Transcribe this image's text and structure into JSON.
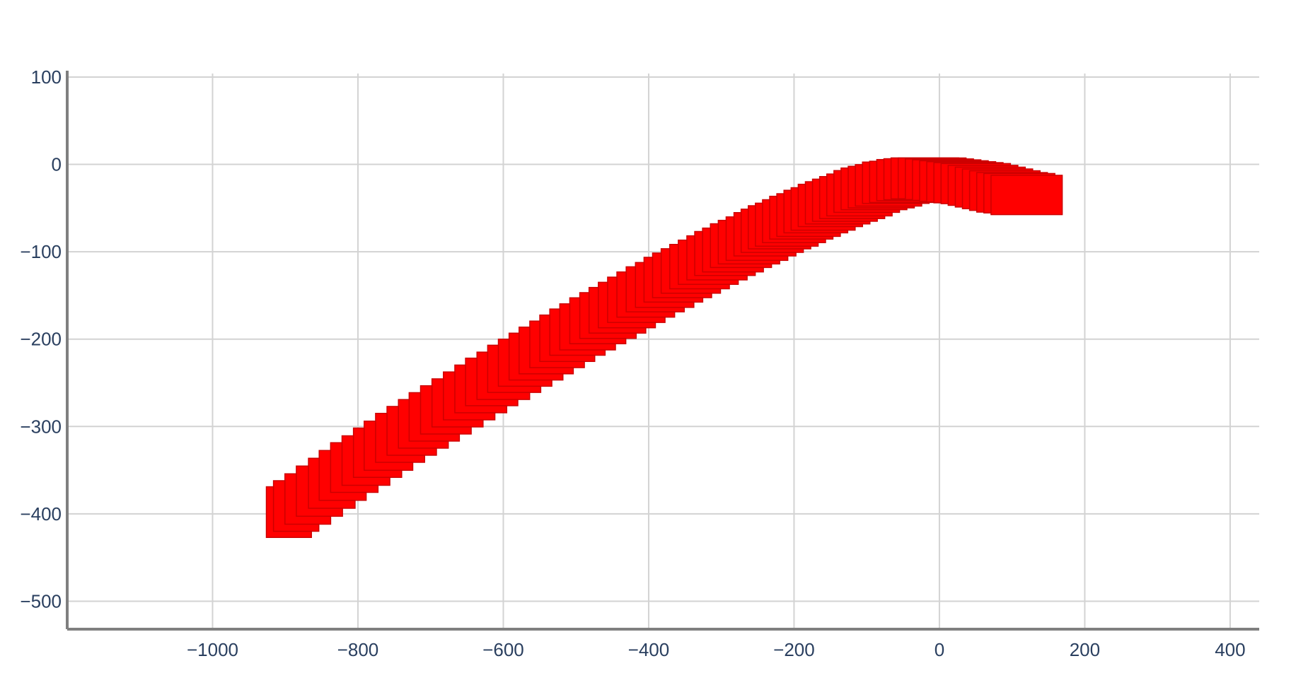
{
  "chart_data": {
    "type": "scatter",
    "title": "",
    "xlabel": "",
    "ylabel": "",
    "xlim": [
      -1200,
      440
    ],
    "ylim": [
      -532,
      104
    ],
    "xticks": [
      -1000,
      -800,
      -600,
      -400,
      -200,
      0,
      200,
      400
    ],
    "yticks": [
      100,
      0,
      -100,
      -200,
      -300,
      -400,
      -500
    ],
    "xtick_labels": [
      "−1000",
      "−800",
      "−600",
      "−400",
      "−200",
      "0",
      "200",
      "400"
    ],
    "ytick_labels": [
      "100",
      "0",
      "−100",
      "−200",
      "−300",
      "−400",
      "−500"
    ],
    "grid": true,
    "legend": false,
    "colors": {
      "marker_fill": "#ff0000",
      "marker_edge": "#cc0000",
      "grid": "#d3d3d3",
      "axis_line": "#7f7f7f",
      "tick_text": "#2a3f5f"
    },
    "series": [
      {
        "marker": "square",
        "marker_size_data_units": [
          {
            "w": 62,
            "h": 58,
            "at_x": -895
          },
          {
            "w": 98,
            "h": 45,
            "at_x": 120
          }
        ],
        "x": [
          -895,
          -885,
          -869,
          -853,
          -836,
          -821,
          -805,
          -789,
          -773,
          -758,
          -742,
          -726,
          -710,
          -695,
          -679,
          -663,
          -647,
          -631,
          -616,
          -600,
          -585,
          -570,
          -555,
          -541,
          -526,
          -512,
          -498,
          -484,
          -470,
          -456,
          -443,
          -430,
          -417,
          -404,
          -391,
          -378,
          -366,
          -354,
          -342,
          -330,
          -318,
          -306,
          -295,
          -284,
          -273,
          -262,
          -251,
          -240,
          -230,
          -220,
          -210,
          -200,
          -190,
          -180,
          -170,
          -160,
          -150,
          -140,
          -130,
          -120,
          -110,
          -100,
          -90,
          -80,
          -70,
          -60,
          -50,
          -40,
          -30,
          -20,
          -10,
          0,
          10,
          20,
          30,
          40,
          50,
          60,
          70,
          80,
          90,
          100,
          110,
          120
        ],
        "y": [
          -398,
          -391,
          -383,
          -374,
          -365,
          -356,
          -347,
          -339,
          -330,
          -322,
          -313,
          -305,
          -297,
          -289,
          -281,
          -273,
          -265,
          -257,
          -249,
          -242,
          -234,
          -227,
          -220,
          -213,
          -206,
          -199,
          -192,
          -186,
          -179,
          -173,
          -167,
          -161,
          -155,
          -149,
          -143,
          -138,
          -132,
          -127,
          -122,
          -117,
          -112,
          -107,
          -102,
          -98,
          -93,
          -89,
          -85,
          -80,
          -76,
          -72,
          -69,
          -65,
          -61,
          -58,
          -54,
          -51,
          -47,
          -44,
          -41,
          -38,
          -35,
          -31,
          -28,
          -26,
          -24,
          -21,
          -20,
          -18,
          -17,
          -16,
          -16,
          -17,
          -18,
          -19,
          -20,
          -21,
          -22,
          -24,
          -26,
          -28,
          -30,
          -32,
          -33,
          -35
        ]
      }
    ]
  }
}
